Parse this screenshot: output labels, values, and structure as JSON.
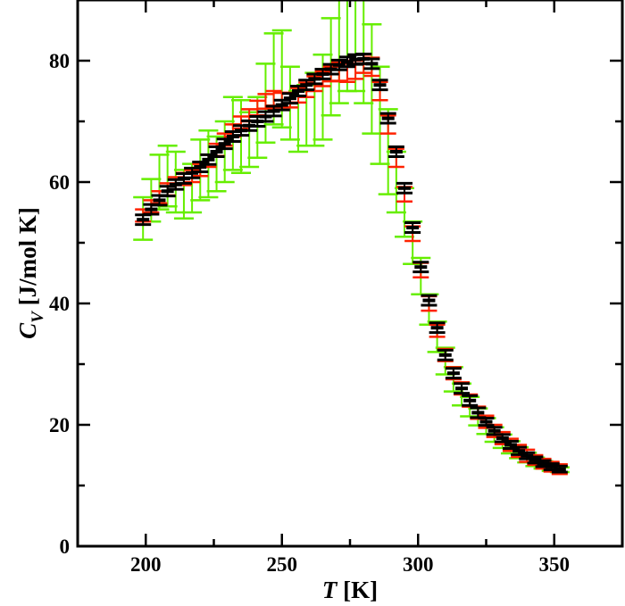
{
  "chart_data": {
    "type": "scatter",
    "xlabel": {
      "italic": "T",
      "rest": " [K]"
    },
    "ylabel": {
      "italic": "C",
      "sub": "V",
      "rest": " [J/mol K]"
    },
    "xlim": [
      175,
      375
    ],
    "ylim": [
      0,
      90
    ],
    "xticks": [
      200,
      250,
      300,
      350
    ],
    "yticks": [
      0,
      20,
      40,
      60,
      80
    ],
    "grid": false,
    "legend": "none",
    "x": [
      199,
      202,
      205,
      208,
      211,
      214,
      217,
      220,
      223,
      226,
      229,
      232,
      235,
      238,
      241,
      244,
      247,
      250,
      253,
      256,
      259,
      262,
      265,
      268,
      271,
      274,
      277,
      280,
      283,
      286,
      289,
      292,
      295,
      298,
      301,
      304,
      307,
      310,
      313,
      316,
      319,
      322,
      325,
      328,
      331,
      334,
      337,
      340,
      343,
      346,
      349,
      352
    ],
    "series": [
      {
        "color": "#66ee00",
        "values": [
          54,
          57,
          60,
          61,
          60,
          58,
          59,
          62,
          63,
          63,
          65,
          68,
          67.5,
          67,
          69,
          73,
          77,
          77,
          73,
          70,
          71,
          72,
          74,
          79,
          82,
          84,
          84,
          82,
          77,
          71,
          65,
          60,
          55,
          50,
          44.5,
          39,
          34.5,
          30.5,
          27.5,
          25,
          23,
          21.3,
          19.8,
          18.4,
          17.3,
          16.3,
          15.4,
          14.6,
          13.9,
          13.4,
          12.9,
          12.6
        ],
        "errors": [
          3.5,
          3.5,
          4.5,
          5,
          5,
          4,
          4,
          5,
          5.5,
          4.5,
          5,
          6,
          6,
          4.5,
          5,
          6.5,
          7.5,
          8,
          6,
          5,
          5,
          6,
          7,
          8,
          9,
          9,
          9,
          9,
          9,
          8,
          7,
          5,
          4,
          3.5,
          3,
          2.5,
          2.5,
          2.2,
          2,
          1.8,
          1.6,
          1.4,
          1.3,
          1.2,
          1.1,
          1,
          0.9,
          0.8,
          0.7,
          0.6,
          0.5,
          0.4
        ]
      },
      {
        "color": "#ff2200",
        "values": [
          54.5,
          56,
          57.5,
          58.8,
          59.8,
          60.5,
          61,
          62,
          63.5,
          65.3,
          67,
          68.5,
          69.8,
          71,
          72.2,
          73.3,
          73.8,
          73.5,
          73.5,
          74.3,
          75.2,
          76.2,
          77,
          77.8,
          78.2,
          78,
          78.5,
          79.5,
          79,
          75,
          69.5,
          64,
          58,
          51.5,
          45.5,
          40,
          35.5,
          31.5,
          28.5,
          26,
          24,
          22,
          20.5,
          19,
          17.8,
          16.7,
          15.7,
          14.9,
          14.2,
          13.6,
          13.1,
          12.7
        ],
        "errors": [
          1,
          1,
          1,
          1,
          1,
          1,
          1,
          1,
          1,
          1,
          1,
          1,
          1,
          1,
          1.2,
          1.2,
          1.2,
          1.2,
          1.2,
          1.2,
          1.2,
          1.2,
          1.2,
          1.2,
          1.5,
          1.5,
          1.5,
          1.5,
          1.5,
          1.5,
          1.5,
          1.5,
          1.2,
          1.2,
          1.2,
          1.2,
          1,
          1,
          1,
          1,
          1,
          1,
          1,
          1,
          1,
          1,
          1,
          1,
          0.8,
          0.8,
          0.8,
          0.8
        ]
      },
      {
        "color": "#000000",
        "values": [
          53.8,
          55.5,
          57,
          58.5,
          59.6,
          60.6,
          61.5,
          62.5,
          63.7,
          65,
          66.3,
          67.5,
          68.5,
          69.3,
          70,
          70.8,
          71.7,
          72.7,
          73.8,
          75,
          76,
          77,
          77.8,
          78.6,
          79.3,
          79.8,
          80.2,
          80.3,
          79.5,
          76,
          70.5,
          65,
          59,
          52.5,
          46,
          40.5,
          36,
          31.5,
          28.5,
          26,
          24,
          22,
          20.5,
          19,
          17.8,
          16.7,
          15.7,
          14.9,
          14.2,
          13.6,
          13.1,
          12.7
        ],
        "errors": [
          0.8,
          0.8,
          0.8,
          0.8,
          0.8,
          0.8,
          0.8,
          0.8,
          0.8,
          0.8,
          0.8,
          0.8,
          0.8,
          0.8,
          0.8,
          0.8,
          0.8,
          0.8,
          0.8,
          0.8,
          0.8,
          0.8,
          0.8,
          0.8,
          0.8,
          0.8,
          0.8,
          0.8,
          0.8,
          0.8,
          0.8,
          0.8,
          0.8,
          0.8,
          0.8,
          0.8,
          0.8,
          0.8,
          0.8,
          0.8,
          0.8,
          0.8,
          0.6,
          0.6,
          0.6,
          0.6,
          0.6,
          0.5,
          0.5,
          0.5,
          0.5,
          0.5
        ]
      }
    ]
  }
}
